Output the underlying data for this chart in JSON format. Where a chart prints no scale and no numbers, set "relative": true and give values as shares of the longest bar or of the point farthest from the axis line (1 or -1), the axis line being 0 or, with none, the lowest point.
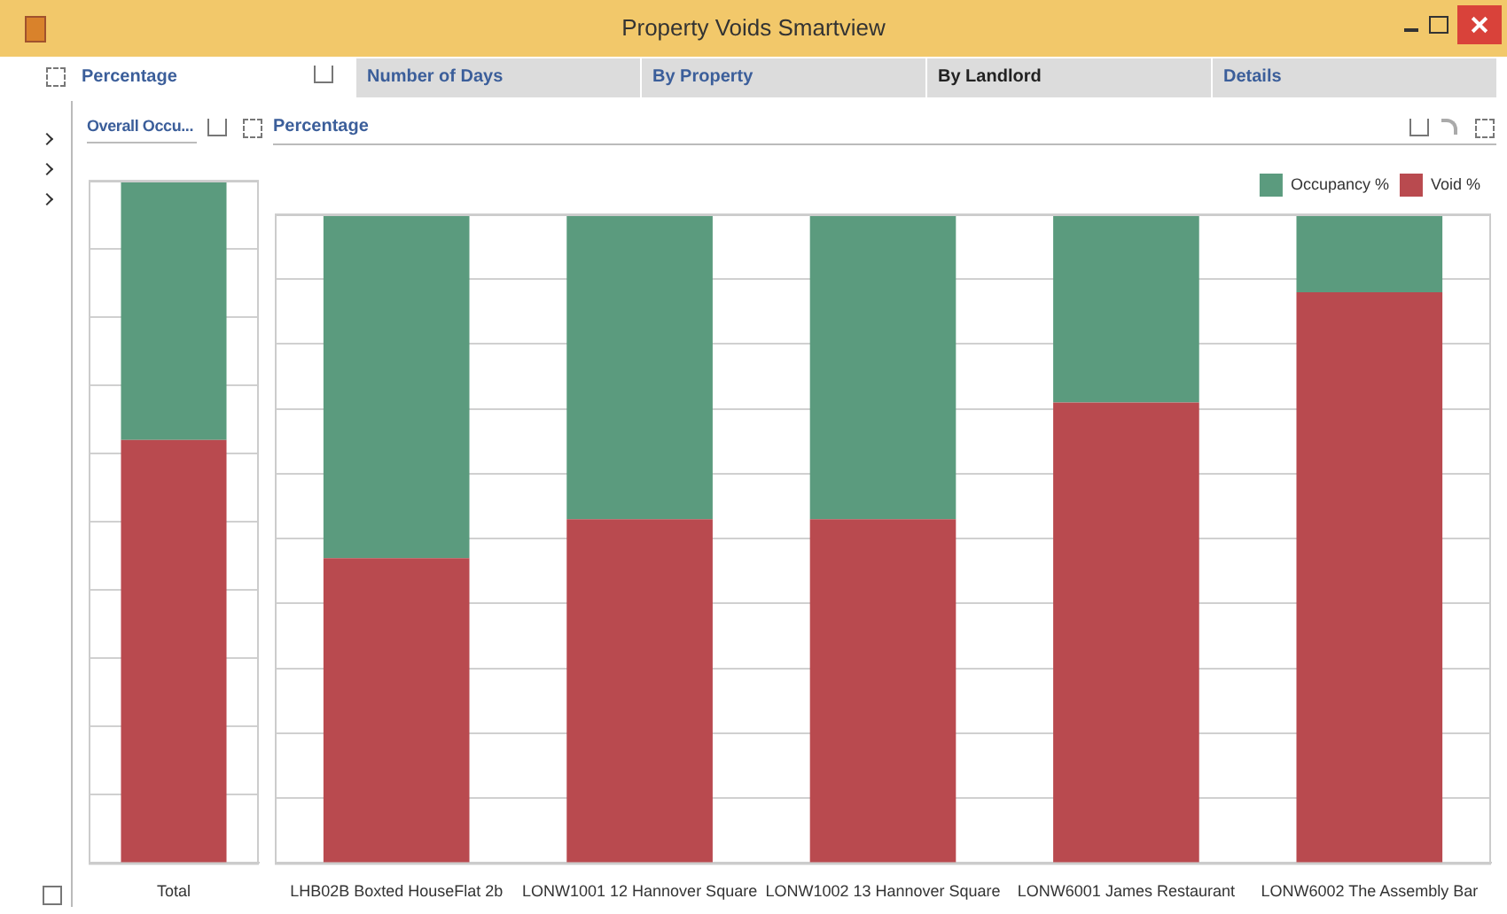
{
  "chart_data": [
    {
      "type": "other",
      "title": "Property Voids Smartview",
      "annotations": [
        "Percentage",
        "Number of Days",
        "By Property",
        "By Landlord",
        "Details"
      ]
    },
    {
      "type": "bar",
      "title": "Overall Occu...",
      "stacked": true,
      "relative": true,
      "grid": "y",
      "categories": [
        "Total"
      ],
      "series": [
        {
          "color": "#b94a4f",
          "values": [
            0.62
          ]
        },
        {
          "color": "#5b9b7e",
          "values": [
            0.38
          ]
        }
      ]
    },
    {
      "type": "bar",
      "title": "Percentage",
      "stacked": true,
      "relative": true,
      "grid": "y",
      "legend": "top right",
      "categories": [
        "LHB02B Boxted HouseFlat 2b",
        "LONW1001 12 Hannover Square",
        "LONW1002 13 Hannover Square",
        "LONW6001 James Restaurant",
        "LONW6002 The Assembly Bar"
      ],
      "series": [
        {
          "name": "Void %",
          "color": "#b94a4f",
          "values": [
            0.47,
            0.53,
            0.53,
            0.71,
            0.88
          ]
        },
        {
          "name": "Occupancy %",
          "color": "#5b9b7e",
          "values": [
            0.53,
            0.47,
            0.47,
            0.29,
            0.12
          ]
        }
      ]
    }
  ]
}
